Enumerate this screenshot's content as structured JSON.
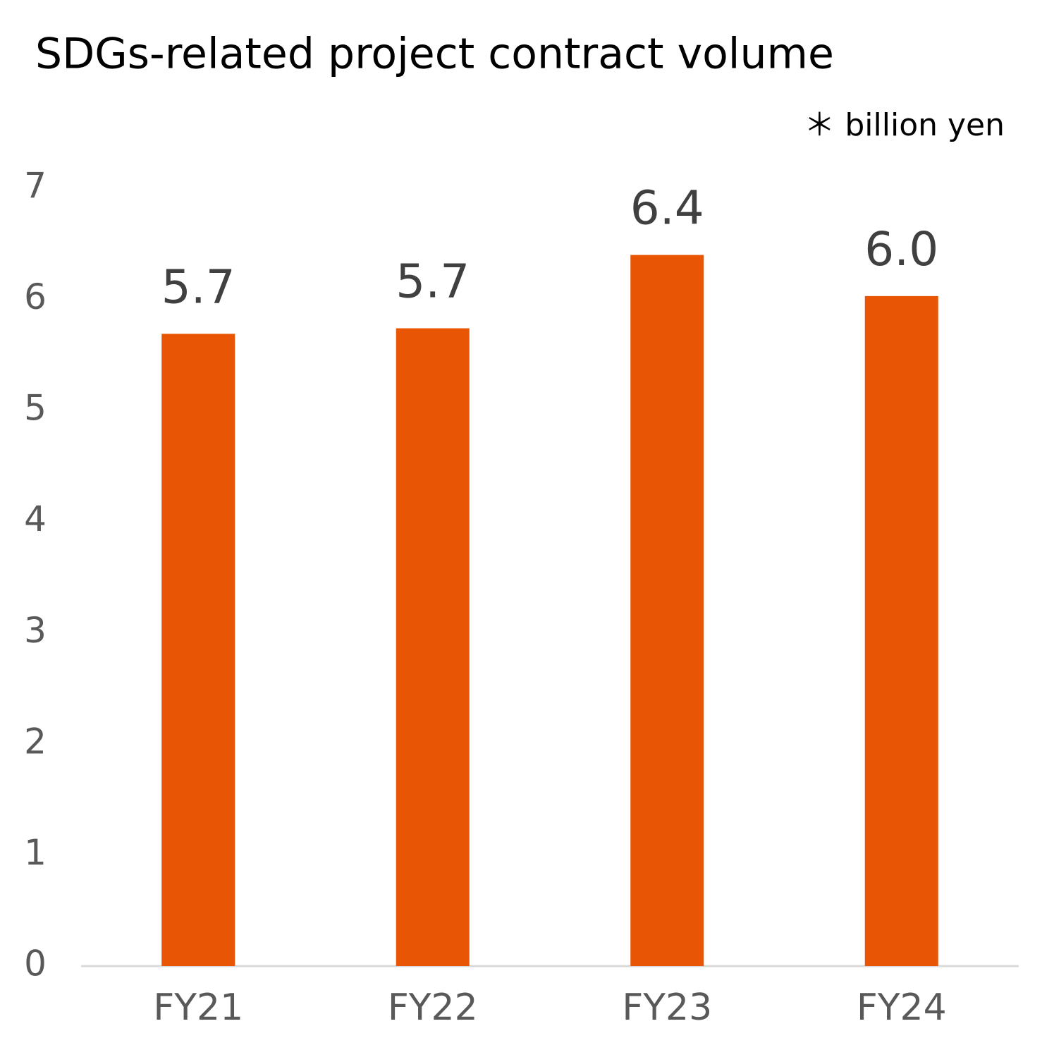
{
  "chart_data": {
    "type": "bar",
    "title": "SDGs-related project contract volume",
    "subtitle": "＊ billion yen",
    "categories": [
      "FY21",
      "FY22",
      "FY23",
      "FY24"
    ],
    "values": [
      5.69,
      5.74,
      6.4,
      6.03
    ],
    "value_labels": [
      "5.7",
      "5.7",
      "6.4",
      "6.0"
    ],
    "color": "#e85504",
    "ylim": [
      0,
      7
    ],
    "yticks": [
      0,
      1,
      2,
      3,
      4,
      5,
      6,
      7
    ],
    "grid": false
  }
}
